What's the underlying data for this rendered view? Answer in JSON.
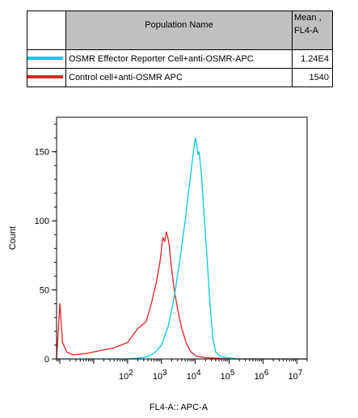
{
  "table": {
    "header_name": "Population Name",
    "header_mean_line1": "Mean ,",
    "header_mean_line2": "FL4-A",
    "rows": [
      {
        "name": "OSMR Effector Reporter Cell+anti-OSMR-APC",
        "mean": "1.24E4",
        "color": "#00c8e8"
      },
      {
        "name": "Control cell+anti-OSMR APC",
        "mean": "1540",
        "color": "#e82020"
      }
    ]
  },
  "chart_data": {
    "type": "line",
    "xlabel": "FL4-A:: APC-A",
    "ylabel": "Count",
    "xscale": "log",
    "xlim": [
      0.8,
      20000000
    ],
    "ylim": [
      0,
      175
    ],
    "yticks": [
      0,
      50,
      100,
      150
    ],
    "xticks": [
      {
        "value": 100,
        "base": "10",
        "exp": "2"
      },
      {
        "value": 1000,
        "base": "10",
        "exp": "3"
      },
      {
        "value": 10000,
        "base": "10",
        "exp": "4"
      },
      {
        "value": 100000,
        "base": "10",
        "exp": "5"
      },
      {
        "value": 1000000,
        "base": "10",
        "exp": "6"
      },
      {
        "value": 10000000,
        "base": "10",
        "exp": "7"
      }
    ],
    "series": [
      {
        "name": "Control cell+anti-OSMR APC",
        "color": "#e82020",
        "points": [
          [
            0.8,
            0
          ],
          [
            1.0,
            40
          ],
          [
            1.2,
            12
          ],
          [
            1.6,
            5
          ],
          [
            2.5,
            3
          ],
          [
            6,
            4
          ],
          [
            15,
            6
          ],
          [
            40,
            8
          ],
          [
            100,
            12
          ],
          [
            200,
            22
          ],
          [
            350,
            27
          ],
          [
            500,
            40
          ],
          [
            700,
            55
          ],
          [
            900,
            70
          ],
          [
            1100,
            88
          ],
          [
            1250,
            85
          ],
          [
            1400,
            92
          ],
          [
            1550,
            88
          ],
          [
            1700,
            82
          ],
          [
            2000,
            65
          ],
          [
            2400,
            50
          ],
          [
            3000,
            36
          ],
          [
            4000,
            22
          ],
          [
            5500,
            11
          ],
          [
            7500,
            5
          ],
          [
            11000,
            2
          ],
          [
            20000,
            1
          ],
          [
            100000,
            0
          ],
          [
            20000000,
            0
          ]
        ]
      },
      {
        "name": "OSMR Effector Reporter Cell+anti-OSMR-APC",
        "color": "#00c8e8",
        "points": [
          [
            0.8,
            0
          ],
          [
            100,
            0
          ],
          [
            300,
            1
          ],
          [
            600,
            4
          ],
          [
            1000,
            10
          ],
          [
            1600,
            24
          ],
          [
            2400,
            45
          ],
          [
            3500,
            72
          ],
          [
            5000,
            100
          ],
          [
            7000,
            130
          ],
          [
            9000,
            152
          ],
          [
            10000,
            160
          ],
          [
            11000,
            155
          ],
          [
            12000,
            148
          ],
          [
            13000,
            150
          ],
          [
            15000,
            135
          ],
          [
            18000,
            105
          ],
          [
            22000,
            75
          ],
          [
            27000,
            40
          ],
          [
            33000,
            15
          ],
          [
            40000,
            5
          ],
          [
            55000,
            2
          ],
          [
            80000,
            1
          ],
          [
            200000,
            0
          ],
          [
            20000000,
            0
          ]
        ]
      }
    ]
  }
}
